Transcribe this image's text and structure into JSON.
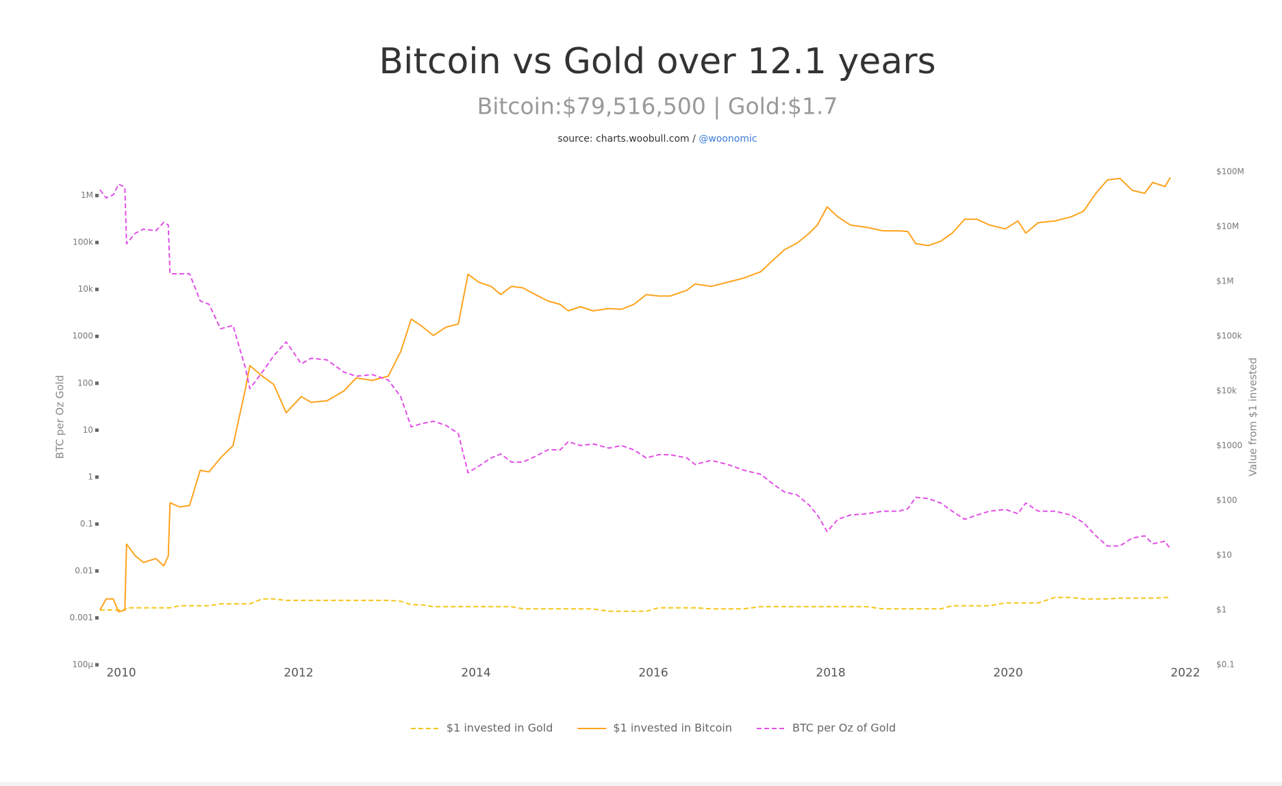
{
  "chart_data": {
    "type": "line",
    "title": "Bitcoin vs Gold over 12.1 years",
    "subtitle": "Bitcoin:$79,516,500 | Gold:$1.7",
    "source": "source: charts.woobull.com /",
    "source_handle": "@woonomic",
    "y_label": "BTC per Oz Gold",
    "y2_label": "Value from $1 invested",
    "log_y": true,
    "log_y2": true,
    "xlim": [
      2009.76,
      2022
    ],
    "xticks": [
      2010,
      2012,
      2014,
      2016,
      2018,
      2020,
      2022
    ],
    "ylim": [
      0.0001,
      3200000
    ],
    "yticks": [
      {
        "value": 0.0001,
        "label": "100µ"
      },
      0.001,
      0.01,
      0.1,
      1,
      10,
      100,
      1000,
      {
        "value": 10000,
        "label": "10k"
      },
      {
        "value": 100000,
        "label": "100k"
      },
      {
        "value": 1000000,
        "label": "1M"
      }
    ],
    "y2lim": [
      0.1,
      100000000
    ],
    "y2ticks": [
      {
        "value": 0.1,
        "label": "$0.1"
      },
      {
        "value": 1,
        "label": "$1"
      },
      {
        "value": 10,
        "label": "$10"
      },
      {
        "value": 100,
        "label": "$100"
      },
      {
        "value": 1000,
        "label": "$1000"
      },
      {
        "value": 10000,
        "label": "$10k"
      },
      {
        "value": 100000,
        "label": "$100k"
      },
      {
        "value": 1000000,
        "label": "$1M"
      },
      {
        "value": 10000000,
        "label": "$10M"
      },
      {
        "value": 100000000,
        "label": "$100M"
      }
    ],
    "legend_position": "bottom",
    "x": [
      2009.76,
      2009.83,
      2009.91,
      2009.97,
      2010.04,
      2010.06,
      2010.16,
      2010.25,
      2010.39,
      2010.48,
      2010.53,
      2010.55,
      2010.66,
      2010.77,
      2010.89,
      2010.99,
      2011.12,
      2011.26,
      2011.4,
      2011.45,
      2011.59,
      2011.72,
      2011.86,
      2012.03,
      2012.14,
      2012.32,
      2012.51,
      2012.65,
      2012.83,
      2013.01,
      2013.15,
      2013.27,
      2013.38,
      2013.52,
      2013.66,
      2013.8,
      2013.91,
      2014.03,
      2014.17,
      2014.28,
      2014.4,
      2014.53,
      2014.67,
      2014.81,
      2014.95,
      2015.04,
      2015.18,
      2015.32,
      2015.5,
      2015.64,
      2015.78,
      2015.92,
      2016.06,
      2016.19,
      2016.38,
      2016.47,
      2016.65,
      2016.84,
      2017.02,
      2017.21,
      2017.35,
      2017.48,
      2017.62,
      2017.76,
      2017.85,
      2017.96,
      2018.08,
      2018.22,
      2018.41,
      2018.59,
      2018.77,
      2018.87,
      2018.96,
      2019.1,
      2019.24,
      2019.37,
      2019.51,
      2019.65,
      2019.79,
      2019.97,
      2020.11,
      2020.2,
      2020.34,
      2020.53,
      2020.71,
      2020.85,
      2020.99,
      2021.12,
      2021.26,
      2021.4,
      2021.54,
      2021.63,
      2021.77,
      2021.83
    ],
    "series": [
      {
        "name": "$1 invested in Gold",
        "color": "#f5c518",
        "dash": true,
        "axis": "y2",
        "values": [
          1.0,
          1.0,
          1.0,
          1.0,
          1.0,
          1.1,
          1.1,
          1.1,
          1.1,
          1.1,
          1.1,
          1.1,
          1.2,
          1.2,
          1.2,
          1.2,
          1.3,
          1.3,
          1.3,
          1.3,
          1.6,
          1.6,
          1.5,
          1.5,
          1.5,
          1.5,
          1.5,
          1.5,
          1.5,
          1.5,
          1.45,
          1.25,
          1.25,
          1.15,
          1.15,
          1.15,
          1.15,
          1.15,
          1.15,
          1.15,
          1.15,
          1.05,
          1.05,
          1.05,
          1.05,
          1.05,
          1.05,
          1.05,
          0.95,
          0.95,
          0.95,
          0.95,
          1.1,
          1.1,
          1.1,
          1.1,
          1.05,
          1.05,
          1.05,
          1.15,
          1.15,
          1.15,
          1.15,
          1.15,
          1.15,
          1.15,
          1.15,
          1.15,
          1.15,
          1.05,
          1.05,
          1.05,
          1.05,
          1.05,
          1.05,
          1.2,
          1.2,
          1.2,
          1.2,
          1.35,
          1.35,
          1.35,
          1.35,
          1.7,
          1.7,
          1.6,
          1.6,
          1.6,
          1.65,
          1.65,
          1.65,
          1.65,
          1.7,
          1.7
        ]
      },
      {
        "name": "$1 invested in Bitcoin",
        "color": "#ffa21c",
        "dash": false,
        "axis": "y2",
        "values": [
          1.0,
          1.6,
          1.6,
          0.93,
          1.0,
          16,
          9.7,
          7.4,
          8.7,
          6.4,
          9.7,
          91,
          76,
          81,
          355,
          333,
          600,
          1000,
          11000,
          29000,
          18600,
          13100,
          4000,
          7900,
          6200,
          6600,
          10000,
          17300,
          15600,
          18600,
          52000,
          205000,
          156000,
          103000,
          146000,
          167000,
          1350000,
          970000,
          810000,
          575000,
          810000,
          760000,
          575000,
          440000,
          380000,
          290000,
          345000,
          290000,
          320000,
          310000,
          380000,
          575000,
          540000,
          540000,
          690000,
          900000,
          810000,
          970000,
          1150000,
          1500000,
          2450000,
          3800000,
          5000000,
          7600000,
          10700000,
          23000000,
          15100000,
          10700000,
          9700000,
          8400000,
          8400000,
          8100000,
          4900000,
          4500000,
          5400000,
          7600000,
          13600000,
          13600000,
          10700000,
          9100000,
          12700000,
          7600000,
          11800000,
          12700000,
          15100000,
          19100000,
          40500000,
          71000000,
          76000000,
          46000000,
          40500000,
          64000000,
          54000000,
          79516500
        ]
      },
      {
        "name": "BTC per Oz of Gold",
        "color": "#e14ee6",
        "dash": true,
        "axis": "y",
        "values": [
          1320000,
          890000,
          1040000,
          1740000,
          1510000,
          94000,
          158000,
          193000,
          178000,
          268000,
          236000,
          21500,
          21500,
          21500,
          5700,
          4800,
          1450,
          1700,
          210,
          77,
          173,
          385,
          760,
          260,
          340,
          315,
          173,
          141,
          153,
          117,
          52,
          11.7,
          13.7,
          15.5,
          12.7,
          8.5,
          1.24,
          1.71,
          2.56,
          3.12,
          2.09,
          2.09,
          2.77,
          3.82,
          3.82,
          5.7,
          4.7,
          5.1,
          4.15,
          4.7,
          3.82,
          2.56,
          3.0,
          3.0,
          2.56,
          1.86,
          2.27,
          1.86,
          1.4,
          1.15,
          0.71,
          0.48,
          0.42,
          0.25,
          0.155,
          0.069,
          0.126,
          0.155,
          0.166,
          0.188,
          0.188,
          0.213,
          0.37,
          0.35,
          0.28,
          0.188,
          0.126,
          0.155,
          0.188,
          0.205,
          0.166,
          0.28,
          0.188,
          0.188,
          0.155,
          0.107,
          0.056,
          0.034,
          0.034,
          0.05,
          0.056,
          0.038,
          0.043,
          0.029
        ]
      }
    ]
  }
}
